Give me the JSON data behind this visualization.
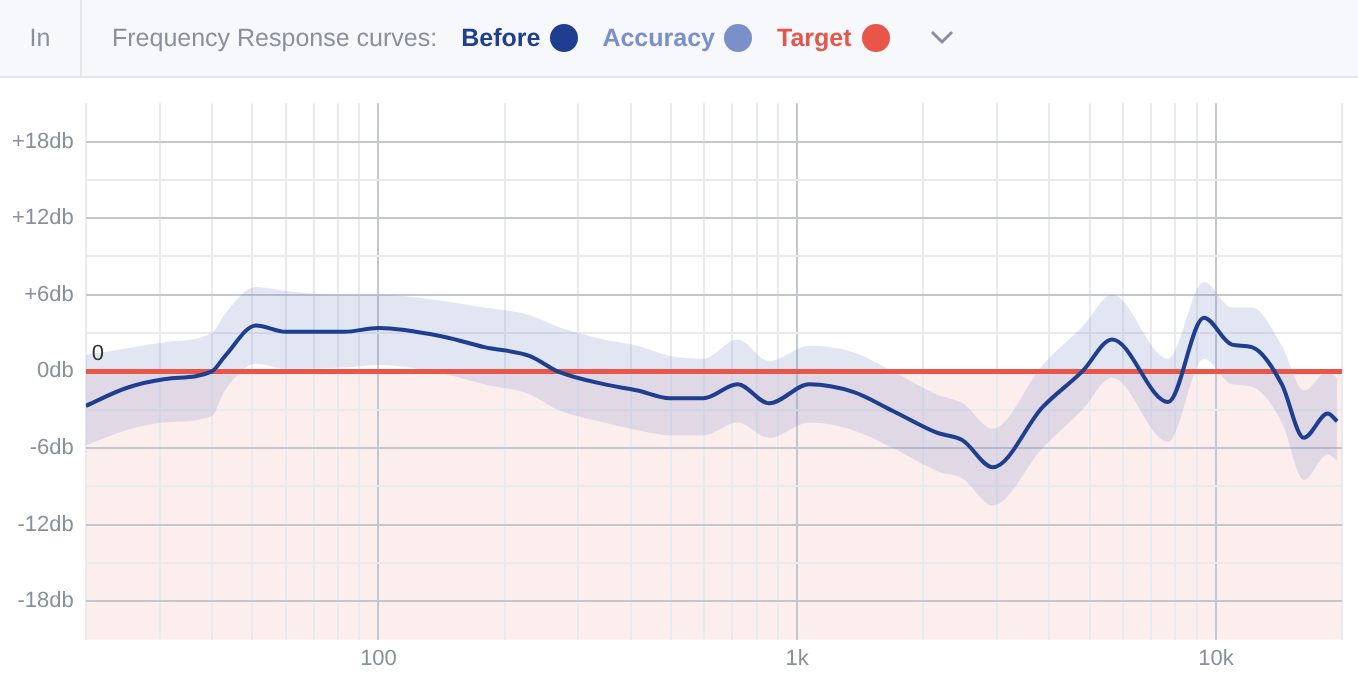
{
  "chart_data": {
    "type": "line",
    "legend_title": "Frequency Response curves:",
    "legend": "top left",
    "annotations": [
      "In",
      {
        "text": "0",
        "x": 20,
        "y": 0
      }
    ],
    "log": "x",
    "grid": true,
    "marker": "none",
    "line_style": "solid",
    "xlim": [
      20,
      20000
    ],
    "ylim": [
      -21,
      21
    ],
    "xticks": [
      {
        "value": 20,
        "label": null
      },
      {
        "value": 30,
        "label": null
      },
      {
        "value": 40,
        "label": null
      },
      {
        "value": 50,
        "label": null
      },
      {
        "value": 60,
        "label": null
      },
      {
        "value": 70,
        "label": null
      },
      {
        "value": 80,
        "label": null
      },
      {
        "value": 90,
        "label": null
      },
      {
        "value": 100,
        "label": "100"
      },
      {
        "value": 200,
        "label": null
      },
      {
        "value": 300,
        "label": null
      },
      {
        "value": 400,
        "label": null
      },
      {
        "value": 500,
        "label": null
      },
      {
        "value": 600,
        "label": null
      },
      {
        "value": 700,
        "label": null
      },
      {
        "value": 800,
        "label": null
      },
      {
        "value": 900,
        "label": null
      },
      {
        "value": 1000,
        "label": "1k"
      },
      {
        "value": 2000,
        "label": null
      },
      {
        "value": 3000,
        "label": null
      },
      {
        "value": 4000,
        "label": null
      },
      {
        "value": 5000,
        "label": null
      },
      {
        "value": 6000,
        "label": null
      },
      {
        "value": 7000,
        "label": null
      },
      {
        "value": 8000,
        "label": null
      },
      {
        "value": 9000,
        "label": null
      },
      {
        "value": 10000,
        "label": "10k"
      },
      {
        "value": 20000,
        "label": null
      }
    ],
    "yticks": [
      {
        "value": -18,
        "label": "-18db"
      },
      {
        "value": -15,
        "label": null
      },
      {
        "value": -12,
        "label": "-12db"
      },
      {
        "value": -9,
        "label": null
      },
      {
        "value": -6,
        "label": "-6db"
      },
      {
        "value": -3,
        "label": null
      },
      {
        "value": 0,
        "label": "0db"
      },
      {
        "value": 3,
        "label": null
      },
      {
        "value": 6,
        "label": "+6db"
      },
      {
        "value": 9,
        "label": null
      },
      {
        "value": 12,
        "label": "+12db"
      },
      {
        "value": 15,
        "label": null
      },
      {
        "value": 18,
        "label": "+18db"
      }
    ],
    "bands": [
      {
        "axis": "y",
        "from": -21,
        "to": 0,
        "color": "#fdeeee"
      }
    ],
    "series": [
      {
        "name": "Before",
        "color": "#1e3f8f",
        "x": [
          20,
          25,
          31,
          40,
          43,
          51,
          60,
          83,
          100,
          144,
          179,
          230,
          268,
          345,
          416,
          496,
          597,
          720,
          857,
          1069,
          1360,
          1693,
          2155,
          2484,
          2930,
          3855,
          4797,
          5653,
          7690,
          9357,
          10914,
          12184,
          14363,
          16212,
          18493,
          19480
        ],
        "values": [
          -2.7,
          -1.3,
          -0.6,
          0,
          1.2,
          3.6,
          3.1,
          3.1,
          3.4,
          2.7,
          1.9,
          1.2,
          0,
          -1.0,
          -1.5,
          -2.1,
          -2.1,
          -1.0,
          -2.5,
          -1.0,
          -1.6,
          -3.1,
          -4.8,
          -5.4,
          -7.5,
          -2.8,
          0,
          2.5,
          -2.4,
          4.2,
          2.1,
          1.9,
          -1.0,
          -5.2,
          -3.3,
          -3.9
        ],
        "upper": [
          1.3,
          1.8,
          2.3,
          3,
          4.5,
          6.6,
          6.3,
          6,
          6,
          5.5,
          5,
          4.4,
          3.5,
          2.5,
          2,
          1.2,
          1,
          2.5,
          0.8,
          2,
          1.5,
          0,
          -1.8,
          -2.5,
          -4.5,
          0.5,
          3.5,
          6,
          1,
          7,
          5,
          5,
          2,
          -1.5,
          0,
          -0.5
        ],
        "lower": [
          -5.8,
          -4.6,
          -4,
          -3.5,
          -1.5,
          0.6,
          0.2,
          0.3,
          0.5,
          -0.2,
          -1,
          -1.8,
          -3,
          -4,
          -4.6,
          -5,
          -5,
          -4,
          -5.2,
          -4,
          -4.6,
          -6,
          -7.8,
          -8.4,
          -10.5,
          -6,
          -3,
          -0.5,
          -5.5,
          1,
          -1,
          -1.2,
          -4,
          -8.5,
          -6.5,
          -7
        ]
      },
      {
        "name": "Accuracy",
        "color": "#7b8fc8"
      },
      {
        "name": "Target",
        "color": "#e8564a",
        "x": [
          20,
          20000
        ],
        "values": [
          0,
          0
        ]
      }
    ]
  }
}
